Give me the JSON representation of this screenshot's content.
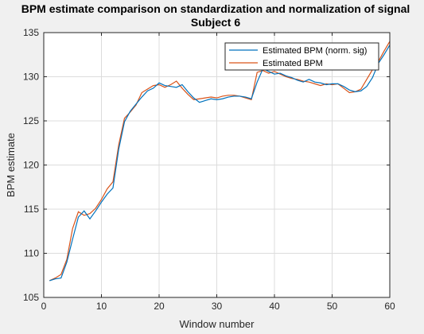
{
  "chart_data": {
    "type": "line",
    "title": "BPM estimate comparison on standardization and normalization of signal",
    "subtitle": "Subject 6",
    "xlabel": "Window number",
    "ylabel": "BPM estimate",
    "xlim": [
      0,
      60
    ],
    "ylim": [
      105,
      135
    ],
    "xticks": [
      0,
      10,
      20,
      30,
      40,
      50,
      60
    ],
    "yticks": [
      105,
      110,
      115,
      120,
      125,
      130,
      135
    ],
    "grid": true,
    "legend_position": "top-right",
    "series": [
      {
        "name": "Estimated BPM (norm. sig)",
        "color": "#0072BD",
        "x": [
          1,
          2,
          3,
          4,
          5,
          6,
          7,
          8,
          9,
          10,
          11,
          12,
          13,
          14,
          15,
          16,
          17,
          18,
          19,
          20,
          21,
          22,
          23,
          24,
          25,
          26,
          27,
          28,
          29,
          30,
          31,
          32,
          33,
          34,
          35,
          36,
          37,
          38,
          39,
          40,
          41,
          42,
          43,
          44,
          45,
          46,
          47,
          48,
          49,
          50,
          51,
          52,
          53,
          54,
          55,
          56,
          57,
          58,
          59,
          60
        ],
        "values": [
          106.9,
          107.1,
          107.2,
          109.0,
          111.6,
          114.1,
          114.8,
          113.9,
          114.8,
          115.8,
          116.7,
          117.4,
          121.8,
          124.9,
          126.1,
          126.9,
          127.7,
          128.4,
          128.7,
          129.3,
          129.0,
          128.9,
          128.8,
          129.1,
          128.3,
          127.6,
          127.1,
          127.3,
          127.5,
          127.4,
          127.5,
          127.7,
          127.8,
          127.8,
          127.7,
          127.5,
          129.4,
          130.9,
          130.6,
          130.3,
          130.4,
          130.1,
          129.9,
          129.6,
          129.4,
          129.7,
          129.4,
          129.3,
          129.1,
          129.2,
          129.2,
          128.9,
          128.5,
          128.3,
          128.4,
          128.9,
          129.9,
          131.5,
          132.5,
          133.6
        ]
      },
      {
        "name": "Estimated BPM",
        "color": "#D95319",
        "x": [
          1,
          2,
          3,
          4,
          5,
          6,
          7,
          8,
          9,
          10,
          11,
          12,
          13,
          14,
          15,
          16,
          17,
          18,
          19,
          20,
          21,
          22,
          23,
          24,
          25,
          26,
          27,
          28,
          29,
          30,
          31,
          32,
          33,
          34,
          35,
          36,
          37,
          38,
          39,
          40,
          41,
          42,
          43,
          44,
          45,
          46,
          47,
          48,
          49,
          50,
          51,
          52,
          53,
          54,
          55,
          56,
          57,
          58,
          59,
          60
        ],
        "values": [
          106.9,
          107.2,
          107.6,
          109.3,
          112.8,
          114.7,
          114.3,
          114.5,
          115.1,
          116.1,
          117.3,
          118.1,
          122.3,
          125.3,
          126.0,
          126.8,
          128.2,
          128.6,
          129.0,
          129.1,
          128.8,
          129.1,
          129.5,
          128.7,
          128.0,
          127.4,
          127.5,
          127.6,
          127.7,
          127.6,
          127.8,
          127.9,
          127.9,
          127.8,
          127.6,
          127.4,
          130.5,
          130.7,
          130.4,
          130.6,
          130.3,
          130.0,
          129.8,
          129.7,
          129.5,
          129.4,
          129.2,
          129.0,
          129.2,
          129.1,
          129.2,
          128.7,
          128.2,
          128.3,
          128.6,
          129.7,
          130.8,
          131.7,
          132.9,
          134.0
        ]
      }
    ]
  }
}
